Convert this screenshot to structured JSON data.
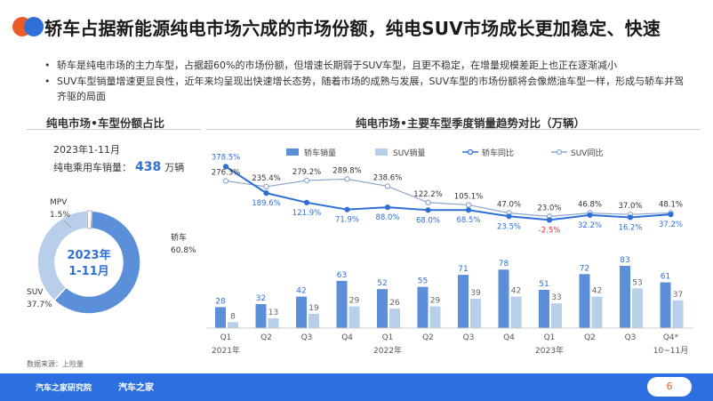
{
  "header": {
    "title": "轿车占据新能源纯电市场六成的市场份额，纯电SUV市场成长更加稳定、快速"
  },
  "bullets": [
    "轿车是纯电市场的主力车型，占据超60%的市场份额，但增速长期弱于SUV车型，且更不稳定，在增量规模差距上也正在逐渐减小",
    "SUV车型销量增速更显良性，近年来均呈现出快速增长态势，随着市场的成熟与发展，SUV车型的市场份额将会像燃油车型一样，形成与轿车并驾齐驱的局面"
  ],
  "left_panel": {
    "title": "纯电市场•车型份额占比",
    "date": "2023年1-11月",
    "total_label": "纯电乘用车销量：",
    "total_value": "438",
    "total_unit": "万辆"
  },
  "right_panel": {
    "title": "纯电市场•主要车型季度销量趋势对比（万辆）"
  },
  "source": "数据来源：上险量",
  "footer": {
    "logo_left": "汽车之家研究院",
    "logo_right": "汽车之家",
    "page": "6"
  },
  "colors": {
    "sedan": "#5b8fd9",
    "suv": "#b8cfea",
    "accent": "#2f6fd8",
    "mpv": "#ffffff",
    "negative": "#e03030"
  },
  "chart_data": [
    {
      "type": "pie",
      "center_text": [
        "2023年",
        "1-11月"
      ],
      "slices": [
        {
          "label": "轿车",
          "value": 60.8,
          "display": "60.8%"
        },
        {
          "label": "SUV",
          "value": 37.7,
          "display": "37.7%"
        },
        {
          "label": "MPV",
          "value": 1.5,
          "display": "1.5%"
        }
      ]
    },
    {
      "type": "bar",
      "categories": [
        "Q1",
        "Q2",
        "Q3",
        "Q4",
        "Q1",
        "Q2",
        "Q3",
        "Q4",
        "Q1",
        "Q2",
        "Q3",
        "Q4*"
      ],
      "year_labels": [
        {
          "text": "2021年",
          "at": 0
        },
        {
          "text": "2022年",
          "at": 4
        },
        {
          "text": "2023年",
          "at": 8
        },
        {
          "text": "10~11月",
          "at": 11
        }
      ],
      "legend": [
        "轿车销量",
        "SUV销量",
        "轿车同比",
        "SUV同比"
      ],
      "series": [
        {
          "name": "轿车销量",
          "kind": "bar",
          "values": [
            28,
            32,
            42,
            63,
            52,
            55,
            71,
            78,
            51,
            72,
            83,
            61
          ]
        },
        {
          "name": "SUV销量",
          "kind": "bar",
          "values": [
            8,
            13,
            19,
            29,
            26,
            29,
            39,
            42,
            33,
            42,
            53,
            37
          ]
        },
        {
          "name": "轿车同比",
          "kind": "line",
          "values": [
            378.5,
            189.6,
            121.9,
            71.9,
            88.0,
            68.0,
            68.5,
            23.5,
            -2.5,
            32.2,
            16.2,
            37.2
          ],
          "labels": [
            "378.5%",
            "189.6%",
            "121.9%",
            "71.9%",
            "88.0%",
            "68.0%",
            "68.5%",
            "23.5%",
            "-2.5%",
            "32.2%",
            "16.2%",
            "37.2%"
          ]
        },
        {
          "name": "SUV同比",
          "kind": "line",
          "values": [
            276.3,
            235.4,
            279.2,
            289.8,
            238.6,
            122.2,
            105.1,
            47.0,
            23.0,
            46.8,
            37.0,
            48.1
          ],
          "labels": [
            "276.3%",
            "235.4%",
            "279.2%",
            "289.8%",
            "238.6%",
            "122.2%",
            "105.1%",
            "47.0%",
            "23.0%",
            "46.8%",
            "37.0%",
            "48.1%"
          ]
        }
      ]
    }
  ]
}
